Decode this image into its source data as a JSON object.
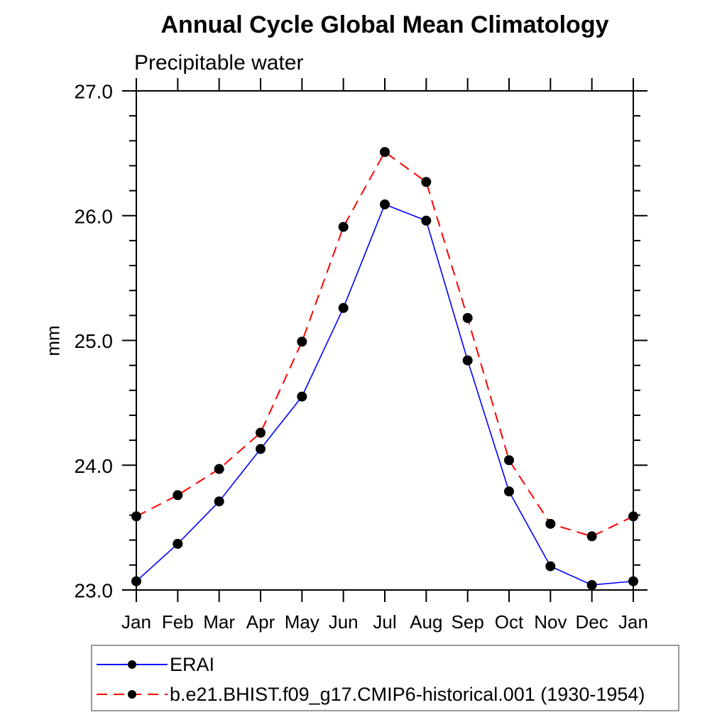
{
  "chart_data": {
    "type": "line",
    "title": "Annual Cycle Global Mean Climatology",
    "subtitle": "Precipitable water",
    "ylabel": "mm",
    "xlabel": "",
    "categories": [
      "Jan",
      "Feb",
      "Mar",
      "Apr",
      "May",
      "Jun",
      "Jul",
      "Aug",
      "Sep",
      "Oct",
      "Nov",
      "Dec",
      "Jan"
    ],
    "ylim": [
      23.0,
      27.0
    ],
    "y_major_ticks": [
      23.0,
      24.0,
      25.0,
      26.0,
      27.0
    ],
    "y_tick_labels": [
      "23.0",
      "24.0",
      "25.0",
      "26.0",
      "27.0"
    ],
    "y_minor_step": 0.2,
    "grid": false,
    "frame": "box-with-outward-ticks",
    "legend_position": "bottom-left-boxed",
    "units": "mm",
    "series": [
      {
        "name": "ERAI",
        "color": "#0000ff",
        "line_style": "solid",
        "marker": "filled-circle",
        "marker_color": "#000000",
        "values": [
          23.07,
          23.37,
          23.71,
          24.13,
          24.55,
          25.26,
          26.09,
          25.96,
          24.84,
          23.79,
          23.19,
          23.04,
          23.07
        ]
      },
      {
        "name": "b.e21.BHIST.f09_g17.CMIP6-historical.001 (1930-1954)",
        "color": "#ff0000",
        "line_style": "dashed",
        "marker": "filled-circle",
        "marker_color": "#000000",
        "values": [
          23.59,
          23.76,
          23.97,
          24.26,
          24.99,
          25.91,
          26.51,
          26.27,
          25.18,
          24.04,
          23.53,
          23.43,
          23.59
        ]
      }
    ]
  }
}
